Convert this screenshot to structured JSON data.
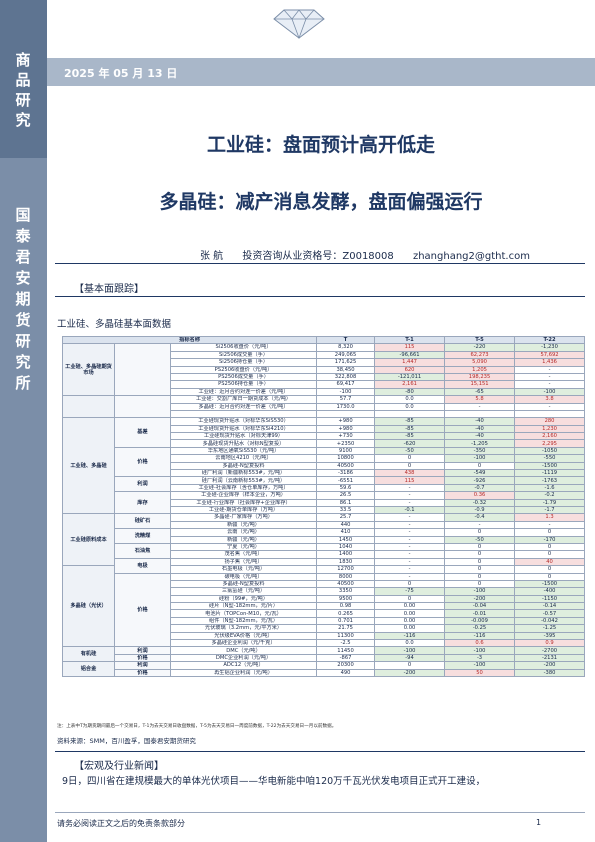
{
  "sidebar": {
    "category": "商品研究",
    "org": "国泰君安期货研究所"
  },
  "header": {
    "date": "2025 年 05 月 13 日"
  },
  "title": {
    "main": "工业硅：盘面预计高开低走",
    "sub": "多晶硅：减产消息发酵，盘面偏强运行"
  },
  "author": {
    "name": "张 航",
    "license": "投资咨询从业资格号：Z0018008",
    "email": "zhanghang2@gtht.com"
  },
  "sections": {
    "basic": "【基本面跟踪】",
    "news": "【宏观及行业新闻】"
  },
  "table": {
    "title": "工业硅、多晶硅基本面数据",
    "headers": [
      "指标名称",
      "",
      "T",
      "T-1",
      "T-5",
      "T-22"
    ],
    "groups": [
      {
        "label": "工业硅、多晶硅期货市场",
        "rowspan": 7
      },
      {
        "label": "",
        "rowspan": 3
      },
      {
        "label": "工业硅、多晶硅",
        "rowspan": 13
      },
      {
        "label": "工业硅原料成本",
        "rowspan": 7
      },
      {
        "label": "多晶硅（光伏）",
        "rowspan": 11
      },
      {
        "label": "有机硅",
        "rowspan": 2
      },
      {
        "label": "铝合金",
        "rowspan": 2
      }
    ],
    "subgroups": [
      {
        "label": "",
        "rowspan": 7
      },
      {
        "label": "",
        "rowspan": 3
      },
      {
        "label": "基差",
        "rowspan": 4
      },
      {
        "label": "价格",
        "rowspan": 4
      },
      {
        "label": "利润",
        "rowspan": 2
      },
      {
        "label": "库存",
        "rowspan": 3
      },
      {
        "label": "硅矿石",
        "rowspan": 2
      },
      {
        "label": "洗精煤",
        "rowspan": 2
      },
      {
        "label": "石油焦",
        "rowspan": 2
      },
      {
        "label": "电极",
        "rowspan": 2
      },
      {
        "label": "价格",
        "rowspan": 10
      },
      {
        "label": "利润",
        "rowspan": 1
      },
      {
        "label": "价格",
        "rowspan": 1
      },
      {
        "label": "利润",
        "rowspan": 1
      },
      {
        "label": "价格",
        "rowspan": 1
      },
      {
        "label": "利润",
        "rowspan": 1
      }
    ],
    "rows": [
      {
        "name": "Si2506收盘价（元/吨）",
        "t": "8,320",
        "t1": "115",
        "t5": "-220",
        "t22": "-1,230",
        "s": [
          "0",
          "pos",
          "neg",
          "neg"
        ]
      },
      {
        "name": "Si2506成交量（手）",
        "t": "249,065",
        "t1": "-96,661",
        "t5": "62,273",
        "t22": "57,692",
        "s": [
          "0",
          "neg",
          "pos",
          "pos"
        ]
      },
      {
        "name": "Si2506持仓量（手）",
        "t": "171,625",
        "t1": "1,447",
        "t5": "5,090",
        "t22": "1,436",
        "s": [
          "0",
          "pos",
          "pos",
          "pos"
        ]
      },
      {
        "name": "PS2506收盘价（元/吨）",
        "t": "38,450",
        "t1": "620",
        "t5": "1,205",
        "t22": "-",
        "s": [
          "0",
          "pos",
          "pos",
          "0"
        ]
      },
      {
        "name": "PS2506成交量（手）",
        "t": "322,808",
        "t1": "-121,011",
        "t5": "198,235",
        "t22": "-",
        "s": [
          "0",
          "neg",
          "pos",
          "0"
        ]
      },
      {
        "name": "PS2506持仓量（手）",
        "t": "69,417",
        "t1": "2,161",
        "t5": "15,151",
        "t22": "-",
        "s": [
          "0",
          "pos",
          "pos",
          "0"
        ]
      },
      {
        "name": "工业硅：近月合约对连一价差（元/吨）",
        "t": "-100",
        "t1": "-80",
        "t5": "-65",
        "t22": "-100",
        "s": [
          "0",
          "neg",
          "neg",
          "neg"
        ]
      },
      {
        "name": "工业硅：交割厂库日一期货成本（元/吨）",
        "t": "57.7",
        "t1": "0.0",
        "t5": "5.8",
        "t22": "3.8",
        "s": [
          "0",
          "0",
          "pos",
          "pos"
        ]
      },
      {
        "name": "多晶硅：近月合约对连一价差（元/吨）",
        "t": "1730.0",
        "t1": "0.0",
        "t5": "-",
        "t22": "-",
        "s": [
          "0",
          "0",
          "0",
          "0"
        ]
      },
      {
        "name": "",
        "t": "",
        "t1": "",
        "t5": "",
        "t22": "",
        "s": [
          "0",
          "0",
          "0",
          "0"
        ]
      },
      {
        "name": "工业硅现货升贴水（对标华东SiS530）",
        "t": "+980",
        "t1": "-85",
        "t5": "-40",
        "t22": "280",
        "s": [
          "0",
          "neg",
          "neg",
          "pos"
        ]
      },
      {
        "name": "工业硅现货升贴水（对标华东Si4210）",
        "t": "+980",
        "t1": "-85",
        "t5": "-40",
        "t22": "1,230",
        "s": [
          "0",
          "neg",
          "neg",
          "pos"
        ]
      },
      {
        "name": "工业硅现货升贴水（对标天津99）",
        "t": "+730",
        "t1": "-85",
        "t5": "-40",
        "t22": "2,160",
        "s": [
          "0",
          "neg",
          "neg",
          "pos"
        ]
      },
      {
        "name": "多晶硅现货升贴水（对标N型复投）",
        "t": "+2350",
        "t1": "-620",
        "t5": "-1,205",
        "t22": "2,295",
        "s": [
          "0",
          "neg",
          "neg",
          "pos"
        ]
      },
      {
        "name": "华东地区通氧SiS530（元/吨）",
        "t": "9100",
        "t1": "-50",
        "t5": "-350",
        "t22": "-1050",
        "s": [
          "0",
          "neg",
          "neg",
          "neg"
        ]
      },
      {
        "name": "云南地区4210（元/吨）",
        "t": "10800",
        "t1": "0",
        "t5": "-100",
        "t22": "-550",
        "s": [
          "0",
          "0",
          "neg",
          "neg"
        ]
      },
      {
        "name": "多晶硅-N型复投料",
        "t": "40500",
        "t1": "0",
        "t5": "0",
        "t22": "-1500",
        "s": [
          "0",
          "0",
          "0",
          "neg"
        ]
      },
      {
        "name": "硅厂利润（新疆新标553#，元/吨）",
        "t": "-3186",
        "t1": "438",
        "t5": "-549",
        "t22": "-1119",
        "s": [
          "0",
          "pos",
          "neg",
          "neg"
        ]
      },
      {
        "name": "硅厂利润（云南新标553#，元/吨）",
        "t": "-6551",
        "t1": "115",
        "t5": "-926",
        "t22": "-1763",
        "s": [
          "0",
          "pos",
          "neg",
          "neg"
        ]
      },
      {
        "name": "工业硅-社会库存（含仓单库存，万吨）",
        "t": "59.6",
        "t1": "-",
        "t5": "-0.7",
        "t22": "-1.6",
        "s": [
          "0",
          "0",
          "neg",
          "neg"
        ]
      },
      {
        "name": "工业硅-企业库存（样本企业，万吨）",
        "t": "26.5",
        "t1": "-",
        "t5": "0.36",
        "t22": "-0.2",
        "s": [
          "0",
          "0",
          "pos",
          "neg"
        ]
      },
      {
        "name": "工业硅-行业库存（社会库存+企业库存）",
        "t": "86.1",
        "t1": "-",
        "t5": "-0.32",
        "t22": "-1.79",
        "s": [
          "0",
          "0",
          "neg",
          "neg"
        ]
      },
      {
        "name": "工业硅-期货仓单库存（万吨）",
        "t": "33.5",
        "t1": "-0.1",
        "t5": "-0.9",
        "t22": "-1.7",
        "s": [
          "0",
          "neg",
          "neg",
          "neg"
        ]
      },
      {
        "name": "多晶硅-厂家库存（万吨）",
        "t": "25.7",
        "t1": "-",
        "t5": "-0.4",
        "t22": "1.3",
        "s": [
          "0",
          "0",
          "neg",
          "pos"
        ]
      },
      {
        "name": "新疆（元/吨）",
        "t": "440",
        "t1": "-",
        "t5": "-",
        "t22": "-",
        "s": [
          "0",
          "0",
          "0",
          "0"
        ]
      },
      {
        "name": "云南（元/吨）",
        "t": "410",
        "t1": "-",
        "t5": "0",
        "t22": "0",
        "s": [
          "0",
          "0",
          "0",
          "0"
        ]
      },
      {
        "name": "新疆（元/吨）",
        "t": "1450",
        "t1": "-",
        "t5": "-50",
        "t22": "-170",
        "s": [
          "0",
          "0",
          "neg",
          "neg"
        ]
      },
      {
        "name": "宁夏（元/吨）",
        "t": "1040",
        "t1": "-",
        "t5": "0",
        "t22": "0",
        "s": [
          "0",
          "0",
          "0",
          "0"
        ]
      },
      {
        "name": "茂名焦（元/吨）",
        "t": "1400",
        "t1": "-",
        "t5": "0",
        "t22": "0",
        "s": [
          "0",
          "0",
          "0",
          "0"
        ]
      },
      {
        "name": "扬子焦（元/吨）",
        "t": "1830",
        "t1": "-",
        "t5": "0",
        "t22": "40",
        "s": [
          "0",
          "0",
          "0",
          "pos"
        ]
      },
      {
        "name": "石墨电极（元/吨）",
        "t": "12700",
        "t1": "-",
        "t5": "0",
        "t22": "0",
        "s": [
          "0",
          "0",
          "0",
          "0"
        ]
      },
      {
        "name": "碳电极（元/吨）",
        "t": "8000",
        "t1": "-",
        "t5": "0",
        "t22": "0",
        "s": [
          "0",
          "0",
          "0",
          "0"
        ]
      },
      {
        "name": "多晶硅-N型复投料",
        "t": "40500",
        "t1": "0",
        "t5": "0",
        "t22": "-1500",
        "s": [
          "0",
          "0",
          "0",
          "neg"
        ]
      },
      {
        "name": "三氯氢硅（元/吨）",
        "t": "3350",
        "t1": "-75",
        "t5": "-100",
        "t22": "-400",
        "s": [
          "0",
          "neg",
          "neg",
          "neg"
        ]
      },
      {
        "name": "硅粉（99#，元/吨）",
        "t": "9500",
        "t1": "0",
        "t5": "-200",
        "t22": "-1150",
        "s": [
          "0",
          "0",
          "neg",
          "neg"
        ]
      },
      {
        "name": "硅片（N型-182mm，元/片）",
        "t": "0.98",
        "t1": "0.00",
        "t5": "-0.04",
        "t22": "-0.14",
        "s": [
          "0",
          "0",
          "neg",
          "neg"
        ]
      },
      {
        "name": "电池片（TOPCon-M10，元/瓦）",
        "t": "0.265",
        "t1": "0.00",
        "t5": "-0.01",
        "t22": "-0.57",
        "s": [
          "0",
          "0",
          "neg",
          "neg"
        ]
      },
      {
        "name": "组件（N型-182mm，元/瓦）",
        "t": "0.701",
        "t1": "0.00",
        "t5": "-0.009",
        "t22": "-0.042",
        "s": [
          "0",
          "0",
          "neg",
          "neg"
        ]
      },
      {
        "name": "光伏玻璃（3.2mm，元/平方米）",
        "t": "21.75",
        "t1": "0.00",
        "t5": "-0.25",
        "t22": "-1.25",
        "s": [
          "0",
          "0",
          "neg",
          "neg"
        ]
      },
      {
        "name": "光伏级EVA价格（元/吨）",
        "t": "11300",
        "t1": "-116",
        "t5": "-116",
        "t22": "-395",
        "s": [
          "0",
          "neg",
          "neg",
          "neg"
        ]
      },
      {
        "name": "多晶硅企业利润（元/千克）",
        "t": "-2.5",
        "t1": "0.0",
        "t5": "0.6",
        "t22": "0.9",
        "s": [
          "0",
          "0",
          "pos",
          "pos"
        ]
      },
      {
        "name": "DMC（元/吨）",
        "t": "11450",
        "t1": "-100",
        "t5": "-100",
        "t22": "-2700",
        "s": [
          "0",
          "neg",
          "neg",
          "neg"
        ]
      },
      {
        "name": "DMC企业利润（元/吨）",
        "t": "-867",
        "t1": "-94",
        "t5": "-3",
        "t22": "-2131",
        "s": [
          "0",
          "neg",
          "neg",
          "neg"
        ]
      },
      {
        "name": "ADC12（元/吨）",
        "t": "20300",
        "t1": "0",
        "t5": "-100",
        "t22": "-200",
        "s": [
          "0",
          "0",
          "neg",
          "neg"
        ]
      },
      {
        "name": "再生铝企业利润（元/吨）",
        "t": "490",
        "t1": "-200",
        "t5": "50",
        "t22": "-380",
        "s": [
          "0",
          "neg",
          "pos",
          "neg"
        ]
      }
    ],
    "note": "注：上表中T为期货期间最后一个交易日，T-1为去天交易日收盘数据，T-5为去天交易日一周度前数据，T-22为去天交易日一月以前数据。",
    "source": "资料来源：SMM，百川盈孚，国泰君安期货研究"
  },
  "news_text": "9日，四川省在建规模最大的单体光伏项目——华电新能中咱120万千瓦光伏发电项目正式开工建设，",
  "footer": {
    "disclaimer": "请务必阅读正文之后的免责条款部分",
    "page": "1"
  },
  "colors": {
    "sidebar": "#7b8ea8",
    "sidebar_dark": "#5e7491",
    "title": "#1f3864",
    "neg_fill": "#dfeede",
    "pos_fill": "#f7dede",
    "pos_text": "#b52b2b"
  }
}
